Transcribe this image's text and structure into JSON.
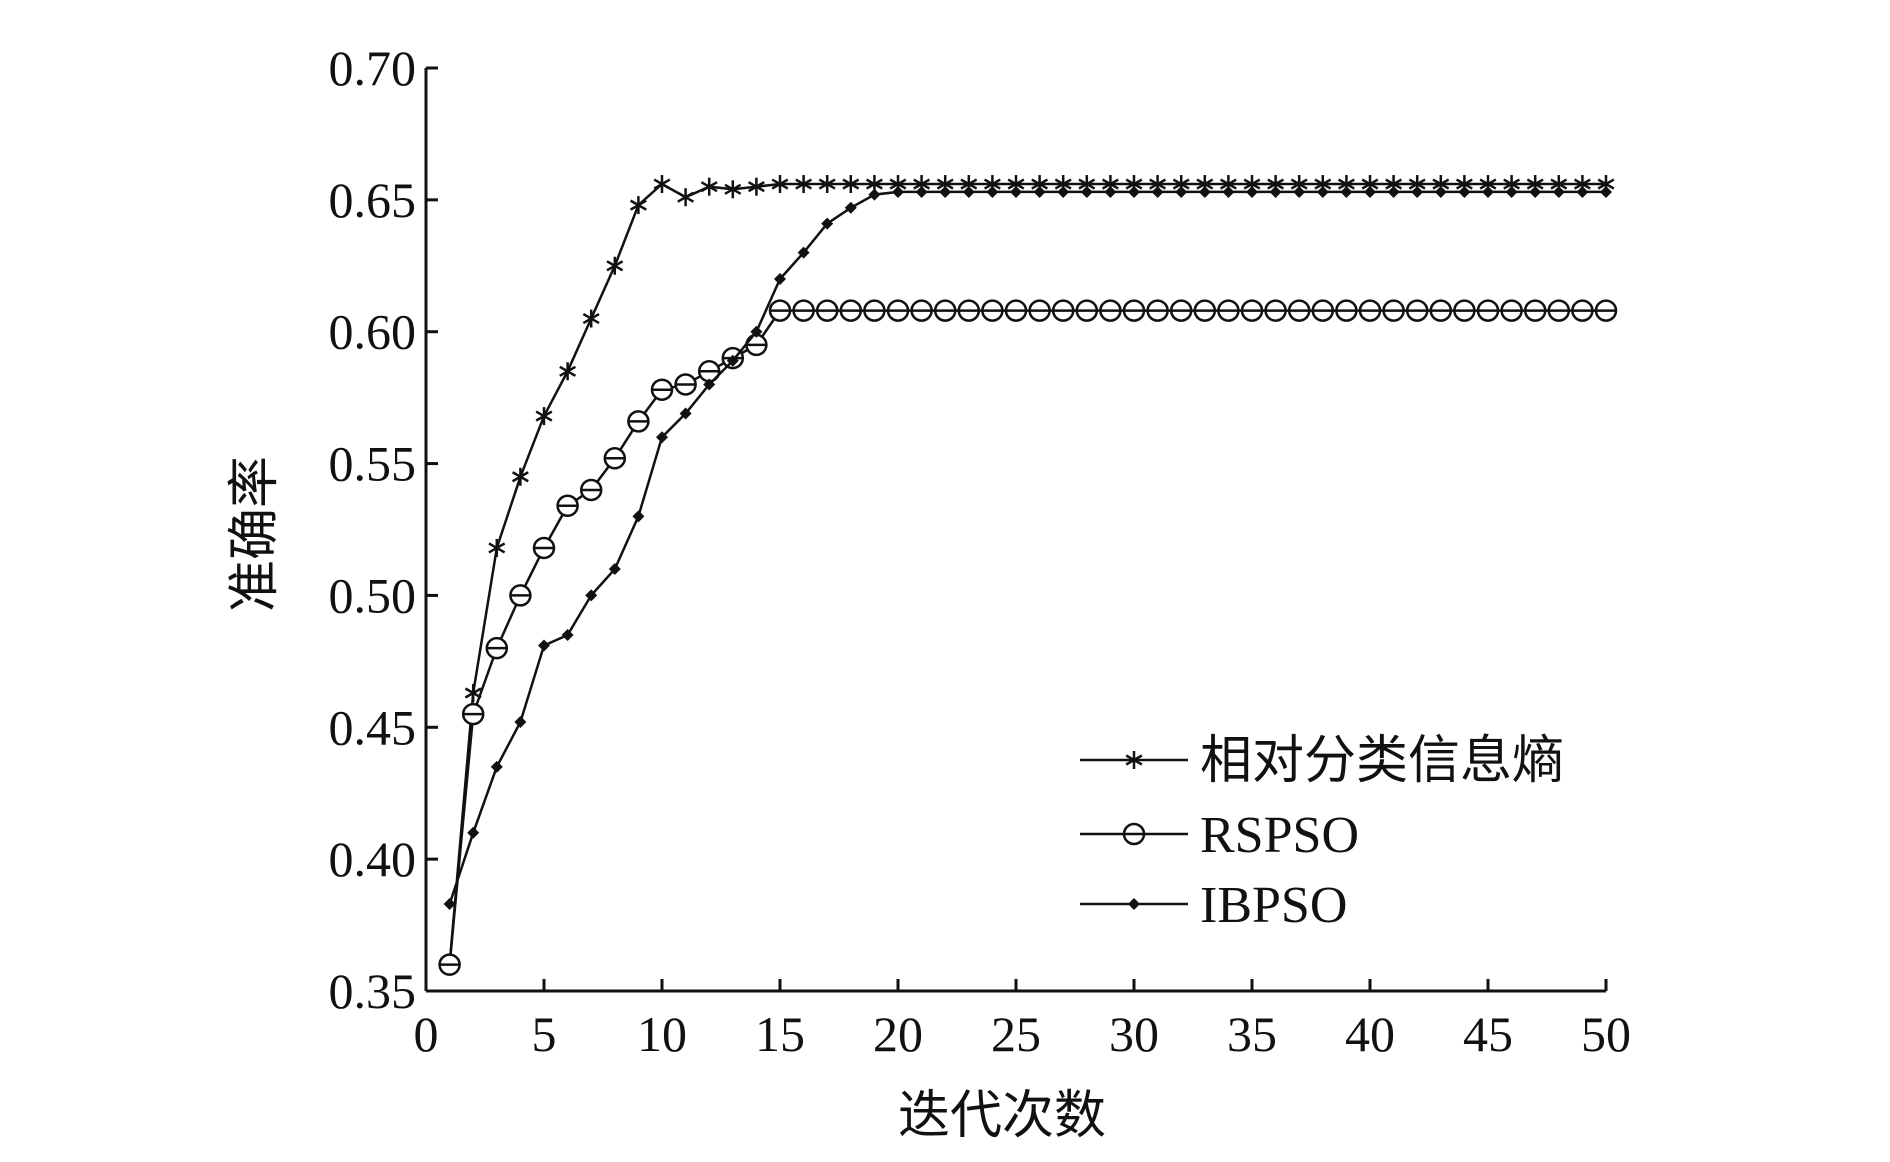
{
  "chart_data": {
    "type": "line",
    "xlabel": "迭代次数",
    "ylabel": "准确率",
    "xlim": [
      0,
      50
    ],
    "ylim": [
      0.35,
      0.7
    ],
    "xticks": [
      "0",
      "5",
      "10",
      "15",
      "20",
      "25",
      "30",
      "35",
      "40",
      "45",
      "50"
    ],
    "yticks": [
      "0.35",
      "0.40",
      "0.45",
      "0.50",
      "0.55",
      "0.60",
      "0.65",
      "0.70"
    ],
    "legend_position": "bottom-right",
    "grid": false,
    "x": [
      1,
      2,
      3,
      4,
      5,
      6,
      7,
      8,
      9,
      10,
      11,
      12,
      13,
      14,
      15,
      16,
      17,
      18,
      19,
      20,
      21,
      22,
      23,
      24,
      25,
      26,
      27,
      28,
      29,
      30,
      31,
      32,
      33,
      34,
      35,
      36,
      37,
      38,
      39,
      40,
      41,
      42,
      43,
      44,
      45,
      46,
      47,
      48,
      49,
      50
    ],
    "series": [
      {
        "name": "相对分类信息熵",
        "marker": "star",
        "values": [
          0.36,
          0.463,
          0.518,
          0.545,
          0.568,
          0.585,
          0.605,
          0.625,
          0.648,
          0.656,
          0.651,
          0.655,
          0.654,
          0.655,
          0.656,
          0.656,
          0.656,
          0.656,
          0.656,
          0.656,
          0.656,
          0.656,
          0.656,
          0.656,
          0.656,
          0.656,
          0.656,
          0.656,
          0.656,
          0.656,
          0.656,
          0.656,
          0.656,
          0.656,
          0.656,
          0.656,
          0.656,
          0.656,
          0.656,
          0.656,
          0.656,
          0.656,
          0.656,
          0.656,
          0.656,
          0.656,
          0.656,
          0.656,
          0.656,
          0.656
        ]
      },
      {
        "name": "RSPSO",
        "marker": "circle",
        "values": [
          0.36,
          0.455,
          0.48,
          0.5,
          0.518,
          0.534,
          0.54,
          0.552,
          0.566,
          0.578,
          0.58,
          0.585,
          0.59,
          0.595,
          0.608,
          0.608,
          0.608,
          0.608,
          0.608,
          0.608,
          0.608,
          0.608,
          0.608,
          0.608,
          0.608,
          0.608,
          0.608,
          0.608,
          0.608,
          0.608,
          0.608,
          0.608,
          0.608,
          0.608,
          0.608,
          0.608,
          0.608,
          0.608,
          0.608,
          0.608,
          0.608,
          0.608,
          0.608,
          0.608,
          0.608,
          0.608,
          0.608,
          0.608,
          0.608,
          0.608
        ]
      },
      {
        "name": "IBPSO",
        "marker": "diamond",
        "values": [
          0.383,
          0.41,
          0.435,
          0.452,
          0.481,
          0.485,
          0.5,
          0.51,
          0.53,
          0.56,
          0.569,
          0.58,
          0.589,
          0.6,
          0.62,
          0.63,
          0.641,
          0.647,
          0.652,
          0.653,
          0.653,
          0.653,
          0.653,
          0.653,
          0.653,
          0.653,
          0.653,
          0.653,
          0.653,
          0.653,
          0.653,
          0.653,
          0.653,
          0.653,
          0.653,
          0.653,
          0.653,
          0.653,
          0.653,
          0.653,
          0.653,
          0.653,
          0.653,
          0.653,
          0.653,
          0.653,
          0.653,
          0.653,
          0.653,
          0.653
        ]
      }
    ]
  }
}
